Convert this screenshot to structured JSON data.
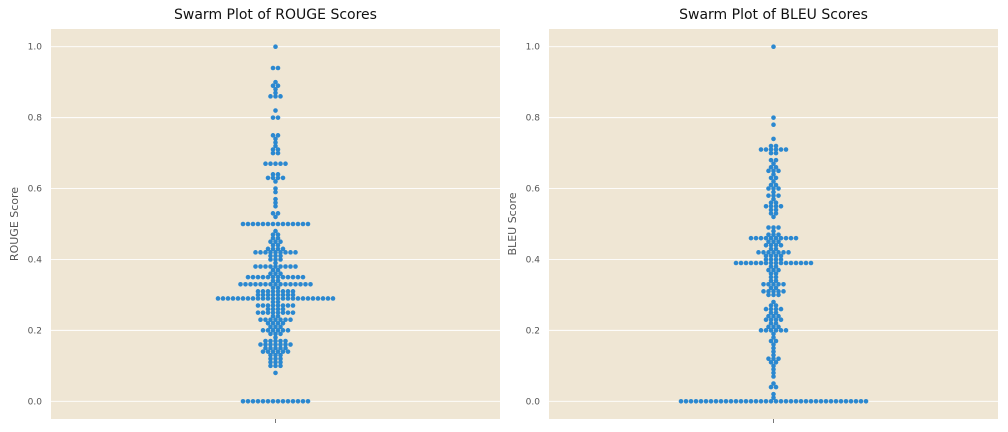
{
  "colors": {
    "background": "#efe6d4",
    "point": "#2b88d0",
    "grid": "#ffffff",
    "text": "#555555"
  },
  "chart_data": [
    {
      "type": "swarm",
      "title": "Swarm Plot of ROUGE Scores",
      "xlabel": "",
      "ylabel": "ROUGE Score",
      "ylim": [
        -0.05,
        1.05
      ],
      "yticks": [
        "0.0",
        "0.2",
        "0.4",
        "0.6",
        "0.8",
        "1.0"
      ],
      "grid": true,
      "values": [
        1.0,
        0.94,
        0.94,
        0.9,
        0.89,
        0.89,
        0.88,
        0.87,
        0.86,
        0.86,
        0.86,
        0.82,
        0.8,
        0.8,
        0.75,
        0.75,
        0.74,
        0.73,
        0.72,
        0.71,
        0.71,
        0.7,
        0.7,
        0.67,
        0.67,
        0.67,
        0.67,
        0.67,
        0.64,
        0.64,
        0.63,
        0.63,
        0.63,
        0.63,
        0.62,
        0.6,
        0.59,
        0.57,
        0.56,
        0.55,
        0.53,
        0.53,
        0.52,
        0.5,
        0.5,
        0.5,
        0.5,
        0.5,
        0.5,
        0.5,
        0.5,
        0.5,
        0.5,
        0.5,
        0.5,
        0.5,
        0.5,
        0.48,
        0.47,
        0.47,
        0.46,
        0.46,
        0.45,
        0.45,
        0.45,
        0.44,
        0.44,
        0.43,
        0.43,
        0.43,
        0.43,
        0.42,
        0.42,
        0.42,
        0.42,
        0.42,
        0.42,
        0.42,
        0.42,
        0.42,
        0.41,
        0.41,
        0.41,
        0.4,
        0.4,
        0.4,
        0.39,
        0.38,
        0.38,
        0.38,
        0.38,
        0.38,
        0.38,
        0.38,
        0.38,
        0.38,
        0.37,
        0.37,
        0.36,
        0.36,
        0.36,
        0.35,
        0.35,
        0.35,
        0.35,
        0.35,
        0.35,
        0.35,
        0.35,
        0.35,
        0.35,
        0.35,
        0.35,
        0.34,
        0.34,
        0.33,
        0.33,
        0.33,
        0.33,
        0.33,
        0.33,
        0.33,
        0.33,
        0.33,
        0.33,
        0.33,
        0.33,
        0.33,
        0.33,
        0.33,
        0.32,
        0.32,
        0.31,
        0.31,
        0.31,
        0.31,
        0.31,
        0.31,
        0.31,
        0.31,
        0.3,
        0.3,
        0.3,
        0.3,
        0.3,
        0.3,
        0.3,
        0.3,
        0.29,
        0.29,
        0.29,
        0.29,
        0.29,
        0.29,
        0.29,
        0.29,
        0.29,
        0.29,
        0.29,
        0.29,
        0.29,
        0.29,
        0.29,
        0.29,
        0.29,
        0.29,
        0.29,
        0.29,
        0.29,
        0.29,
        0.29,
        0.29,
        0.28,
        0.28,
        0.27,
        0.27,
        0.27,
        0.27,
        0.27,
        0.27,
        0.27,
        0.27,
        0.26,
        0.26,
        0.26,
        0.26,
        0.25,
        0.25,
        0.25,
        0.25,
        0.25,
        0.25,
        0.25,
        0.25,
        0.24,
        0.24,
        0.23,
        0.23,
        0.23,
        0.23,
        0.23,
        0.23,
        0.23,
        0.22,
        0.22,
        0.22,
        0.22,
        0.21,
        0.21,
        0.21,
        0.2,
        0.2,
        0.2,
        0.2,
        0.2,
        0.2,
        0.19,
        0.19,
        0.19,
        0.18,
        0.17,
        0.17,
        0.17,
        0.17,
        0.17,
        0.16,
        0.16,
        0.16,
        0.16,
        0.16,
        0.16,
        0.16,
        0.15,
        0.15,
        0.15,
        0.15,
        0.15,
        0.14,
        0.14,
        0.14,
        0.14,
        0.14,
        0.14,
        0.13,
        0.13,
        0.13,
        0.12,
        0.12,
        0.12,
        0.11,
        0.11,
        0.11,
        0.1,
        0.1,
        0.1,
        0.08,
        0.0,
        0.0,
        0.0,
        0.0,
        0.0,
        0.0,
        0.0,
        0.0,
        0.0,
        0.0,
        0.0,
        0.0,
        0.0,
        0.0
      ]
    },
    {
      "type": "swarm",
      "title": "Swarm Plot of BLEU Scores",
      "xlabel": "",
      "ylabel": "BLEU Score",
      "ylim": [
        -0.05,
        1.05
      ],
      "yticks": [
        "0.0",
        "0.2",
        "0.4",
        "0.6",
        "0.8",
        "1.0"
      ],
      "grid": true,
      "values": [
        1.0,
        0.8,
        0.78,
        0.74,
        0.72,
        0.72,
        0.71,
        0.71,
        0.71,
        0.71,
        0.71,
        0.71,
        0.7,
        0.7,
        0.68,
        0.68,
        0.67,
        0.66,
        0.66,
        0.65,
        0.65,
        0.65,
        0.64,
        0.63,
        0.63,
        0.62,
        0.61,
        0.61,
        0.6,
        0.6,
        0.6,
        0.59,
        0.58,
        0.58,
        0.58,
        0.57,
        0.56,
        0.56,
        0.55,
        0.55,
        0.55,
        0.55,
        0.54,
        0.54,
        0.53,
        0.53,
        0.52,
        0.49,
        0.49,
        0.49,
        0.48,
        0.47,
        0.47,
        0.47,
        0.46,
        0.46,
        0.46,
        0.46,
        0.46,
        0.46,
        0.46,
        0.46,
        0.46,
        0.46,
        0.45,
        0.45,
        0.45,
        0.44,
        0.44,
        0.44,
        0.44,
        0.43,
        0.43,
        0.42,
        0.42,
        0.42,
        0.42,
        0.42,
        0.42,
        0.42,
        0.41,
        0.41,
        0.41,
        0.41,
        0.4,
        0.4,
        0.4,
        0.4,
        0.39,
        0.39,
        0.39,
        0.39,
        0.39,
        0.39,
        0.39,
        0.39,
        0.39,
        0.39,
        0.39,
        0.39,
        0.39,
        0.39,
        0.39,
        0.39,
        0.38,
        0.38,
        0.37,
        0.37,
        0.37,
        0.36,
        0.36,
        0.35,
        0.35,
        0.34,
        0.34,
        0.33,
        0.33,
        0.33,
        0.33,
        0.33,
        0.32,
        0.32,
        0.31,
        0.31,
        0.31,
        0.31,
        0.31,
        0.3,
        0.3,
        0.3,
        0.28,
        0.27,
        0.27,
        0.26,
        0.26,
        0.26,
        0.26,
        0.25,
        0.25,
        0.24,
        0.24,
        0.24,
        0.23,
        0.23,
        0.23,
        0.23,
        0.22,
        0.22,
        0.21,
        0.21,
        0.21,
        0.2,
        0.2,
        0.2,
        0.2,
        0.2,
        0.2,
        0.19,
        0.18,
        0.17,
        0.17,
        0.16,
        0.15,
        0.14,
        0.13,
        0.12,
        0.12,
        0.12,
        0.11,
        0.11,
        0.1,
        0.09,
        0.08,
        0.07,
        0.05,
        0.04,
        0.04,
        0.02,
        0.01,
        0.0,
        0.0,
        0.0,
        0.0,
        0.0,
        0.0,
        0.0,
        0.0,
        0.0,
        0.0,
        0.0,
        0.0,
        0.0,
        0.0,
        0.0,
        0.0,
        0.0,
        0.0,
        0.0,
        0.0,
        0.0,
        0.0,
        0.0,
        0.0,
        0.0,
        0.0,
        0.0,
        0.0,
        0.0,
        0.0,
        0.0,
        0.0,
        0.0,
        0.0,
        0.0,
        0.0,
        0.0,
        0.0
      ]
    }
  ]
}
